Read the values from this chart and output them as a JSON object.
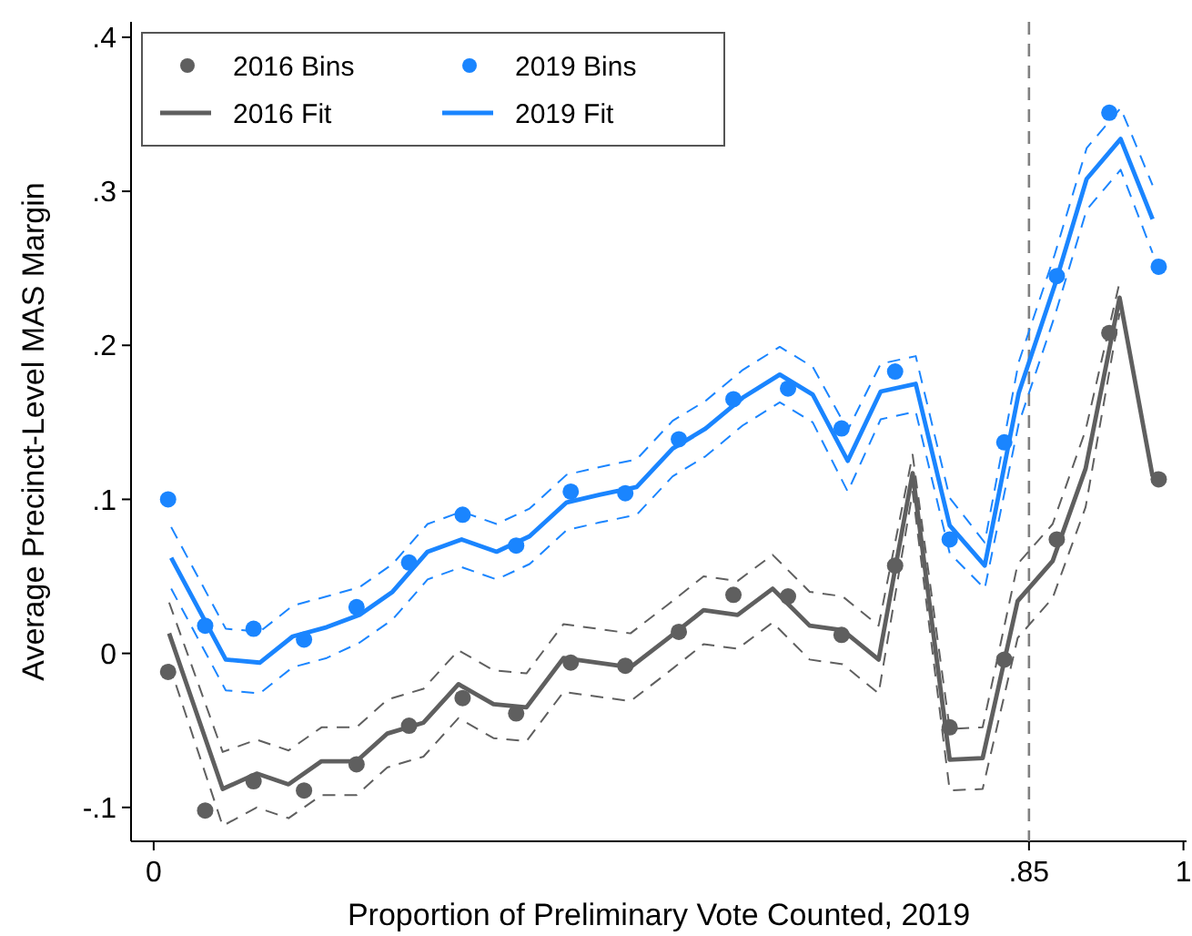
{
  "chart_data": {
    "type": "line",
    "xlabel": "Proportion of Preliminary Vote Counted, 2019",
    "ylabel": "Average Precinct-Level MAS Margin",
    "xlim": [
      -0.022,
      1.003
    ],
    "ylim": [
      -0.122,
      0.41
    ],
    "xticks": [
      0,
      {
        "value": 0.85,
        "label": ".85"
      },
      1
    ],
    "yticks": [
      {
        "value": -0.1,
        "label": "-.1"
      },
      0,
      {
        "value": 0.1,
        "label": ".1"
      },
      {
        "value": 0.2,
        "label": ".2"
      },
      {
        "value": 0.3,
        "label": ".3"
      },
      {
        "value": 0.4,
        "label": ".4"
      }
    ],
    "legend": "top left",
    "ref_lines": [
      {
        "axis": "x",
        "value": 0.85,
        "color": "#808080",
        "line_style": "dashed"
      }
    ],
    "series": [
      {
        "name": "2016 Bins",
        "type": "scatter",
        "marker": "circle",
        "color": "#5f5f5f",
        "x": [
          0.014,
          0.05,
          0.097,
          0.146,
          0.197,
          0.248,
          0.3,
          0.352,
          0.405,
          0.458,
          0.51,
          0.563,
          0.616,
          0.668,
          0.72,
          0.773,
          0.826,
          0.877,
          0.928,
          0.976
        ],
        "values": [
          -0.012,
          -0.102,
          -0.083,
          -0.089,
          -0.072,
          -0.047,
          -0.029,
          -0.039,
          -0.006,
          -0.008,
          0.014,
          0.038,
          0.037,
          0.012,
          0.057,
          -0.048,
          -0.004,
          0.074,
          0.208,
          0.113
        ]
      },
      {
        "name": "2019 Bins",
        "type": "scatter",
        "marker": "circle",
        "color": "#1a85ff",
        "x": [
          0.014,
          0.05,
          0.097,
          0.146,
          0.197,
          0.248,
          0.3,
          0.352,
          0.405,
          0.458,
          0.51,
          0.563,
          0.616,
          0.668,
          0.72,
          0.773,
          0.826,
          0.877,
          0.928,
          0.976
        ],
        "values": [
          0.1,
          0.018,
          0.016,
          0.009,
          0.03,
          0.059,
          0.09,
          0.07,
          0.105,
          0.104,
          0.139,
          0.165,
          0.172,
          0.146,
          0.183,
          0.074,
          0.137,
          0.245,
          0.351,
          0.251
        ]
      },
      {
        "name": "2016 Fit",
        "line_style": "solid",
        "color": "#5f5f5f",
        "x": [
          0.015,
          0.067,
          0.1,
          0.131,
          0.163,
          0.197,
          0.227,
          0.262,
          0.296,
          0.33,
          0.362,
          0.398,
          0.463,
          0.5,
          0.534,
          0.567,
          0.601,
          0.637,
          0.669,
          0.704,
          0.737,
          0.773,
          0.805,
          0.839,
          0.873,
          0.905,
          0.938,
          0.97
        ],
        "values": [
          0.013,
          -0.088,
          -0.078,
          -0.085,
          -0.07,
          -0.07,
          -0.052,
          -0.045,
          -0.02,
          -0.033,
          -0.035,
          -0.003,
          -0.009,
          0.01,
          0.028,
          0.025,
          0.042,
          0.018,
          0.015,
          -0.004,
          0.117,
          -0.069,
          -0.068,
          0.034,
          0.06,
          0.12,
          0.231,
          0.115
        ]
      },
      {
        "name": "2019 Fit",
        "line_style": "solid",
        "color": "#1a85ff",
        "x": [
          0.017,
          0.07,
          0.103,
          0.135,
          0.168,
          0.2,
          0.232,
          0.266,
          0.299,
          0.333,
          0.365,
          0.401,
          0.433,
          0.469,
          0.504,
          0.536,
          0.572,
          0.608,
          0.64,
          0.674,
          0.706,
          0.74,
          0.773,
          0.807,
          0.84,
          0.875,
          0.906,
          0.939,
          0.97
        ],
        "values": [
          0.062,
          -0.004,
          -0.006,
          0.011,
          0.017,
          0.025,
          0.04,
          0.066,
          0.074,
          0.066,
          0.076,
          0.098,
          0.103,
          0.108,
          0.133,
          0.146,
          0.166,
          0.181,
          0.168,
          0.125,
          0.17,
          0.175,
          0.083,
          0.057,
          0.169,
          0.239,
          0.308,
          0.334,
          0.282
        ]
      },
      {
        "line_style": "dashed",
        "color": "#5f5f5f",
        "x": [
          0.015,
          0.067,
          0.1,
          0.131,
          0.163,
          0.197,
          0.227,
          0.262,
          0.296,
          0.33,
          0.362,
          0.398,
          0.463,
          0.5,
          0.534,
          0.567,
          0.601,
          0.637,
          0.669,
          0.704,
          0.737,
          0.773,
          0.805,
          0.839,
          0.873,
          0.905,
          0.938
        ],
        "values": [
          -0.007,
          -0.112,
          -0.1,
          -0.107,
          -0.092,
          -0.092,
          -0.074,
          -0.067,
          -0.042,
          -0.055,
          -0.057,
          -0.025,
          -0.031,
          -0.012,
          0.006,
          0.003,
          0.02,
          -0.004,
          -0.007,
          -0.026,
          0.105,
          -0.089,
          -0.088,
          0.01,
          0.036,
          0.095,
          0.221
        ]
      },
      {
        "line_style": "dashed",
        "color": "#5f5f5f",
        "x": [
          0.015,
          0.067,
          0.1,
          0.131,
          0.163,
          0.197,
          0.227,
          0.262,
          0.296,
          0.33,
          0.362,
          0.398,
          0.463,
          0.5,
          0.534,
          0.567,
          0.601,
          0.637,
          0.669,
          0.704,
          0.737,
          0.773,
          0.805,
          0.839,
          0.873,
          0.905,
          0.938
        ],
        "values": [
          0.033,
          -0.064,
          -0.056,
          -0.063,
          -0.048,
          -0.048,
          -0.03,
          -0.023,
          0.002,
          -0.011,
          -0.013,
          0.019,
          0.013,
          0.032,
          0.05,
          0.047,
          0.064,
          0.04,
          0.037,
          0.018,
          0.129,
          -0.049,
          -0.048,
          0.058,
          0.084,
          0.145,
          0.241
        ]
      },
      {
        "line_style": "dashed",
        "color": "#1a85ff",
        "x": [
          0.017,
          0.07,
          0.103,
          0.135,
          0.168,
          0.2,
          0.232,
          0.266,
          0.299,
          0.333,
          0.365,
          0.401,
          0.433,
          0.469,
          0.504,
          0.536,
          0.572,
          0.608,
          0.64,
          0.674,
          0.706,
          0.74,
          0.773,
          0.807,
          0.84,
          0.875,
          0.906,
          0.939,
          0.97
        ],
        "values": [
          0.042,
          -0.024,
          -0.026,
          -0.009,
          -0.003,
          0.007,
          0.022,
          0.048,
          0.056,
          0.048,
          0.058,
          0.08,
          0.085,
          0.09,
          0.115,
          0.128,
          0.148,
          0.163,
          0.15,
          0.105,
          0.152,
          0.157,
          0.065,
          0.042,
          0.149,
          0.219,
          0.288,
          0.314,
          0.26
        ]
      },
      {
        "line_style": "dashed",
        "color": "#1a85ff",
        "x": [
          0.017,
          0.07,
          0.103,
          0.135,
          0.168,
          0.2,
          0.232,
          0.266,
          0.299,
          0.333,
          0.365,
          0.401,
          0.433,
          0.469,
          0.504,
          0.536,
          0.572,
          0.608,
          0.64,
          0.674,
          0.706,
          0.74,
          0.773,
          0.807,
          0.84,
          0.875,
          0.906,
          0.939,
          0.97
        ],
        "values": [
          0.082,
          0.016,
          0.014,
          0.031,
          0.037,
          0.043,
          0.058,
          0.084,
          0.092,
          0.084,
          0.094,
          0.116,
          0.121,
          0.126,
          0.151,
          0.164,
          0.184,
          0.199,
          0.186,
          0.145,
          0.188,
          0.193,
          0.101,
          0.072,
          0.189,
          0.259,
          0.328,
          0.354,
          0.304
        ]
      }
    ]
  }
}
